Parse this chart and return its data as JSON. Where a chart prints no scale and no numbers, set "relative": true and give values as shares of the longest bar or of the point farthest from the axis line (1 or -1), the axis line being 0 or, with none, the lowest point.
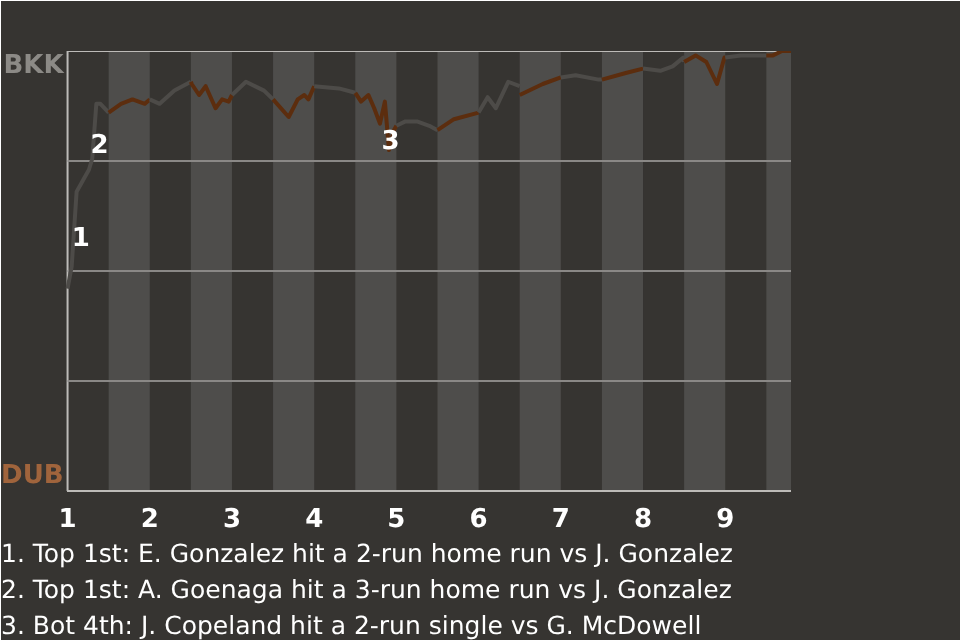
{
  "chart_data": {
    "type": "line",
    "relative": true,
    "series": [
      {
        "color": "#4d4b48",
        "x": [
          1.0,
          1.05,
          1.11,
          1.2,
          1.26,
          1.3,
          1.35,
          1.4,
          1.5
        ],
        "values": [
          0.46,
          0.51,
          0.68,
          0.71,
          0.73,
          0.755,
          0.88,
          0.88,
          0.86
        ]
      },
      {
        "color": "#5c2d0e",
        "x": [
          1.5,
          1.65,
          1.79,
          1.94,
          2.0
        ],
        "values": [
          0.86,
          0.88,
          0.89,
          0.88,
          0.89
        ]
      },
      {
        "color": "#4d4b48",
        "x": [
          2.0,
          2.12,
          2.3,
          2.5
        ],
        "values": [
          0.89,
          0.88,
          0.91,
          0.93
        ]
      },
      {
        "color": "#5c2d0e",
        "x": [
          2.5,
          2.51,
          2.6,
          2.68,
          2.8,
          2.88,
          2.96,
          3.0
        ],
        "values": [
          0.93,
          0.925,
          0.9,
          0.92,
          0.87,
          0.89,
          0.885,
          0.9
        ]
      },
      {
        "color": "#4d4b48",
        "x": [
          3.0,
          3.17,
          3.39,
          3.5
        ],
        "values": [
          0.9,
          0.93,
          0.91,
          0.89
        ]
      },
      {
        "color": "#5c2d0e",
        "x": [
          3.5,
          3.69,
          3.8,
          3.88,
          3.93,
          4.0
        ],
        "values": [
          0.89,
          0.85,
          0.89,
          0.9,
          0.89,
          0.92
        ]
      },
      {
        "color": "#4d4b48",
        "x": [
          4.0,
          4.3,
          4.5
        ],
        "values": [
          0.92,
          0.915,
          0.905
        ]
      },
      {
        "color": "#5c2d0e",
        "x": [
          4.5,
          4.57,
          4.66,
          4.73,
          4.8,
          4.86,
          4.91,
          4.97,
          5.0
        ],
        "values": [
          0.905,
          0.885,
          0.9,
          0.87,
          0.835,
          0.885,
          0.775,
          0.82,
          0.83
        ]
      },
      {
        "color": "#4d4b48",
        "x": [
          5.0,
          5.11,
          5.25,
          5.4,
          5.5
        ],
        "values": [
          0.83,
          0.84,
          0.84,
          0.83,
          0.82
        ]
      },
      {
        "color": "#5c2d0e",
        "x": [
          5.5,
          5.7,
          6.0
        ],
        "values": [
          0.82,
          0.845,
          0.86
        ]
      },
      {
        "color": "#4d4b48",
        "x": [
          6.0,
          6.11,
          6.21,
          6.36,
          6.5
        ],
        "values": [
          0.86,
          0.895,
          0.87,
          0.93,
          0.92
        ]
      },
      {
        "color": "#5c2d0e",
        "x": [
          6.5,
          6.78,
          7.0
        ],
        "values": [
          0.9,
          0.925,
          0.94
        ]
      },
      {
        "color": "#4d4b48",
        "x": [
          7.0,
          7.18,
          7.46,
          7.5
        ],
        "values": [
          0.94,
          0.945,
          0.935,
          0.935
        ]
      },
      {
        "color": "#5c2d0e",
        "x": [
          7.5,
          7.79,
          8.0
        ],
        "values": [
          0.935,
          0.95,
          0.96
        ]
      },
      {
        "color": "#4d4b48",
        "x": [
          8.0,
          8.21,
          8.36,
          8.49,
          8.5
        ],
        "values": [
          0.96,
          0.955,
          0.965,
          0.985,
          0.975
        ]
      },
      {
        "color": "#5c2d0e",
        "x": [
          8.5,
          8.64,
          8.77,
          8.9,
          8.99,
          9.0
        ],
        "values": [
          0.975,
          0.99,
          0.975,
          0.925,
          0.985,
          0.985
        ]
      },
      {
        "color": "#4d4b48",
        "x": [
          9.0,
          9.19,
          9.5
        ],
        "values": [
          0.985,
          0.99,
          0.99
        ]
      },
      {
        "color": "#5c2d0e",
        "x": [
          9.5,
          9.58,
          9.69,
          9.8
        ],
        "values": [
          0.99,
          0.99,
          1,
          1
        ]
      }
    ],
    "xlim": [
      1,
      9.8
    ],
    "xticks": [
      1,
      2,
      3,
      4,
      5,
      6,
      7,
      8,
      9
    ],
    "grid": "y",
    "bands": [
      {
        "axis": "x",
        "from": 1.5,
        "to": 2,
        "color": "#4e4d4b"
      },
      {
        "axis": "x",
        "from": 2.5,
        "to": 3,
        "color": "#4e4d4b"
      },
      {
        "axis": "x",
        "from": 3.5,
        "to": 4,
        "color": "#4e4d4b"
      },
      {
        "axis": "x",
        "from": 4.5,
        "to": 5,
        "color": "#4e4d4b"
      },
      {
        "axis": "x",
        "from": 5.5,
        "to": 6,
        "color": "#4e4d4b"
      },
      {
        "axis": "x",
        "from": 6.5,
        "to": 7,
        "color": "#4e4d4b"
      },
      {
        "axis": "x",
        "from": 7.5,
        "to": 8,
        "color": "#4e4d4b"
      },
      {
        "axis": "x",
        "from": 8.5,
        "to": 9,
        "color": "#4e4d4b"
      },
      {
        "axis": "x",
        "from": 9.5,
        "to": 9.8,
        "color": "#4e4d4b"
      }
    ],
    "annotations": [
      {
        "text": "1",
        "x": 1.16,
        "y": 0.58
      },
      {
        "text": "2",
        "x": 1.39,
        "y": 0.79
      },
      {
        "text": "3",
        "x": 4.93,
        "y": 0.8
      },
      "BKK",
      "DUB",
      "1. Top 1st: E. Gonzalez hit a 2-run home run vs J. Gonzalez",
      "2. Top 1st: A. Goenaga hit a 3-run home run vs J. Gonzalez",
      "3. Bot 4th: J. Copeland hit a 2-run single vs G. McDowell"
    ],
    "line_style": "solid"
  }
}
